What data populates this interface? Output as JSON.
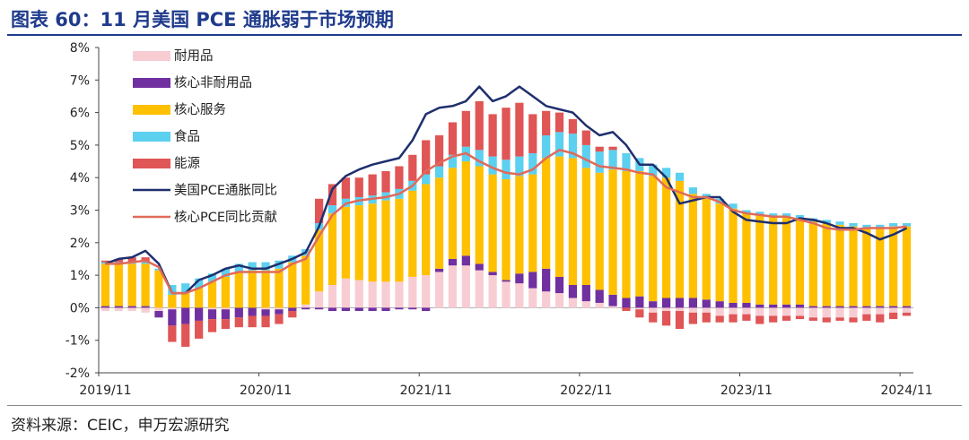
{
  "header": {
    "title": "图表 60：11 月美国 PCE 通胀弱于市场预期"
  },
  "footer": {
    "source": "资料来源：CEIC，申万宏源研究"
  },
  "chart_data": {
    "type": "bar",
    "stacked": true,
    "title": "图表 60：11 月美国 PCE 通胀弱于市场预期",
    "ylim": [
      -2,
      8
    ],
    "yticks": [
      -2,
      -1,
      0,
      1,
      2,
      3,
      4,
      5,
      6,
      7,
      8
    ],
    "ytick_labels": [
      "-2%",
      "-1%",
      "0%",
      "1%",
      "2%",
      "3%",
      "4%",
      "5%",
      "6%",
      "7%",
      "8%"
    ],
    "xtick_labels": [
      {
        "index": 0,
        "label": "2019/11"
      },
      {
        "index": 12,
        "label": "2020/11"
      },
      {
        "index": 24,
        "label": "2021/11"
      },
      {
        "index": 36,
        "label": "2022/11"
      },
      {
        "index": 48,
        "label": "2023/11"
      },
      {
        "index": 60,
        "label": "2024/11"
      }
    ],
    "categories": [
      "2019/11",
      "2019/12",
      "2020/01",
      "2020/02",
      "2020/03",
      "2020/04",
      "2020/05",
      "2020/06",
      "2020/07",
      "2020/08",
      "2020/09",
      "2020/10",
      "2020/11",
      "2020/12",
      "2021/01",
      "2021/02",
      "2021/03",
      "2021/04",
      "2021/05",
      "2021/06",
      "2021/07",
      "2021/08",
      "2021/09",
      "2021/10",
      "2021/11",
      "2021/12",
      "2022/01",
      "2022/02",
      "2022/03",
      "2022/04",
      "2022/05",
      "2022/06",
      "2022/07",
      "2022/08",
      "2022/09",
      "2022/10",
      "2022/11",
      "2022/12",
      "2023/01",
      "2023/02",
      "2023/03",
      "2023/04",
      "2023/05",
      "2023/06",
      "2023/07",
      "2023/08",
      "2023/09",
      "2023/10",
      "2023/11",
      "2023/12",
      "2024/01",
      "2024/02",
      "2024/03",
      "2024/04",
      "2024/05",
      "2024/06",
      "2024/07",
      "2024/08",
      "2024/09",
      "2024/10",
      "2024/11"
    ],
    "legend": {
      "position": "top-left"
    },
    "series": [
      {
        "name": "耐用品",
        "kind": "bar",
        "color": "#f7cdd3",
        "values": [
          -0.1,
          -0.1,
          -0.1,
          -0.15,
          -0.1,
          -0.05,
          0,
          0,
          -0.05,
          -0.05,
          0,
          0,
          -0.05,
          -0.05,
          0,
          0.1,
          0.5,
          0.7,
          0.9,
          0.85,
          0.8,
          0.8,
          0.8,
          0.95,
          1.0,
          1.1,
          1.3,
          1.3,
          1.15,
          1.0,
          0.8,
          0.75,
          0.6,
          0.5,
          0.45,
          0.3,
          0.2,
          0.15,
          0.05,
          0,
          -0.05,
          -0.15,
          -0.1,
          -0.1,
          -0.15,
          -0.15,
          -0.25,
          -0.2,
          -0.2,
          -0.25,
          -0.25,
          -0.25,
          -0.25,
          -0.3,
          -0.3,
          -0.3,
          -0.3,
          -0.2,
          -0.2,
          -0.15,
          -0.15
        ]
      },
      {
        "name": "核心非耐用品",
        "kind": "bar",
        "color": "#7030a0",
        "values": [
          0.05,
          0.05,
          0.05,
          0.05,
          -0.2,
          -0.5,
          -0.5,
          -0.4,
          -0.3,
          -0.3,
          -0.3,
          -0.25,
          -0.2,
          -0.15,
          -0.1,
          -0.05,
          -0.05,
          -0.1,
          -0.1,
          -0.1,
          -0.1,
          -0.1,
          -0.05,
          -0.05,
          -0.1,
          0.1,
          0.2,
          0.3,
          0.2,
          0.1,
          0.05,
          0.3,
          0.5,
          0.7,
          0.5,
          0.4,
          0.5,
          0.4,
          0.35,
          0.3,
          0.35,
          0.2,
          0.3,
          0.3,
          0.3,
          0.25,
          0.2,
          0.15,
          0.15,
          0.1,
          0.1,
          0.1,
          0.1,
          0.05,
          0.05,
          0.05,
          0.05,
          0.05,
          0.05,
          0.05,
          0.05
        ]
      },
      {
        "name": "核心服务",
        "kind": "bar",
        "color": "#ffc000",
        "values": [
          1.3,
          1.3,
          1.3,
          1.3,
          1.15,
          0.4,
          0.45,
          0.6,
          0.8,
          0.95,
          1.1,
          1.15,
          1.15,
          1.2,
          1.4,
          1.5,
          1.9,
          2.2,
          2.2,
          2.3,
          2.4,
          2.5,
          2.55,
          2.65,
          2.8,
          2.8,
          2.8,
          2.9,
          3.0,
          3.0,
          3.1,
          3.0,
          3.0,
          3.4,
          3.7,
          3.9,
          3.6,
          3.6,
          3.85,
          3.9,
          3.85,
          3.85,
          3.7,
          3.6,
          3.2,
          3.1,
          3.0,
          2.9,
          2.75,
          2.75,
          2.7,
          2.7,
          2.65,
          2.6,
          2.55,
          2.5,
          2.45,
          2.4,
          2.4,
          2.45,
          2.45
        ]
      },
      {
        "name": "食品",
        "kind": "bar",
        "color": "#5cd0ef",
        "values": [
          0.05,
          0.05,
          0.05,
          0.05,
          0.05,
          0.3,
          0.3,
          0.3,
          0.25,
          0.25,
          0.25,
          0.25,
          0.25,
          0.25,
          0.2,
          0.2,
          0.2,
          0.25,
          0.25,
          0.25,
          0.25,
          0.25,
          0.3,
          0.3,
          0.3,
          0.35,
          0.4,
          0.45,
          0.5,
          0.55,
          0.6,
          0.6,
          0.65,
          0.7,
          0.75,
          0.75,
          0.7,
          0.65,
          0.6,
          0.55,
          0.4,
          0.35,
          0.3,
          0.25,
          0.2,
          0.15,
          0.15,
          0.15,
          0.1,
          0.1,
          0.1,
          0.1,
          0.1,
          0.1,
          0.1,
          0.1,
          0.1,
          0.1,
          0.1,
          0.1,
          0.1
        ]
      },
      {
        "name": "能源",
        "kind": "bar",
        "color": "#e05555",
        "values": [
          0.05,
          0.1,
          0.15,
          0.15,
          0,
          -0.5,
          -0.7,
          -0.55,
          -0.4,
          -0.3,
          -0.3,
          -0.35,
          -0.35,
          -0.3,
          -0.2,
          0,
          0.75,
          0.65,
          0.65,
          0.6,
          0.65,
          0.65,
          0.7,
          0.8,
          1.05,
          0.95,
          1.0,
          1.1,
          1.5,
          1.3,
          1.6,
          1.65,
          1.2,
          0.75,
          0.6,
          0.45,
          0.45,
          0.15,
          0.1,
          -0.1,
          -0.25,
          -0.3,
          -0.45,
          -0.55,
          -0.35,
          -0.3,
          -0.2,
          -0.25,
          -0.2,
          -0.25,
          -0.2,
          -0.15,
          -0.1,
          -0.1,
          -0.15,
          -0.1,
          -0.15,
          -0.2,
          -0.25,
          -0.2,
          -0.1
        ]
      },
      {
        "name": "美国PCE通胀同比",
        "kind": "line",
        "color": "#1f2f6e",
        "values": [
          1.35,
          1.5,
          1.55,
          1.75,
          1.35,
          0.45,
          0.45,
          0.85,
          1.0,
          1.2,
          1.3,
          1.2,
          1.2,
          1.35,
          1.5,
          1.7,
          2.5,
          3.65,
          4.05,
          4.25,
          4.4,
          4.5,
          4.6,
          5.15,
          5.95,
          6.15,
          6.2,
          6.35,
          6.8,
          6.35,
          6.5,
          6.8,
          6.5,
          6.2,
          6.1,
          6.0,
          5.6,
          5.3,
          5.4,
          5.0,
          4.4,
          4.4,
          4.0,
          3.2,
          3.3,
          3.4,
          3.4,
          2.95,
          2.7,
          2.65,
          2.6,
          2.6,
          2.75,
          2.7,
          2.6,
          2.45,
          2.45,
          2.3,
          2.1,
          2.25,
          2.45
        ]
      },
      {
        "name": "核心PCE同比贡献",
        "kind": "line",
        "color": "#e06a5a",
        "values": [
          1.35,
          1.35,
          1.4,
          1.45,
          1.25,
          0.45,
          0.45,
          0.6,
          0.8,
          1.0,
          1.1,
          1.1,
          1.1,
          1.1,
          1.35,
          1.5,
          2.2,
          2.85,
          3.2,
          3.3,
          3.35,
          3.4,
          3.5,
          3.75,
          4.2,
          4.45,
          4.65,
          4.75,
          4.5,
          4.3,
          4.15,
          4.1,
          4.25,
          4.6,
          4.85,
          4.75,
          4.55,
          4.35,
          4.3,
          4.25,
          4.15,
          4.1,
          3.7,
          3.55,
          3.4,
          3.4,
          3.25,
          3.0,
          2.9,
          2.85,
          2.8,
          2.8,
          2.7,
          2.6,
          2.45,
          2.4,
          2.4,
          2.45,
          2.45,
          2.45,
          2.5
        ]
      }
    ]
  }
}
